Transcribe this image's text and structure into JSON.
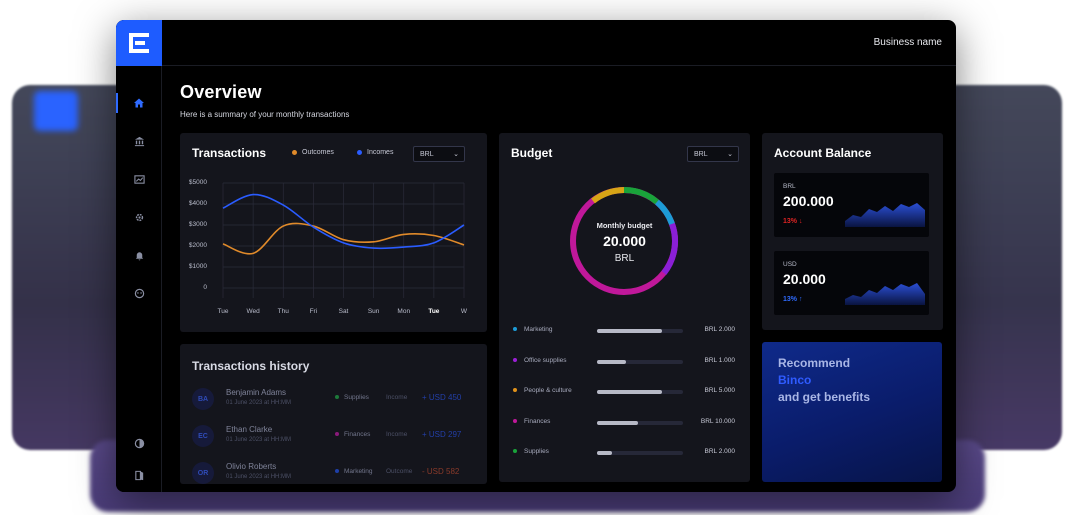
{
  "header": {
    "business_name": "Business name"
  },
  "sidebar": {
    "items": [
      {
        "icon": "home-icon"
      },
      {
        "icon": "bank-icon"
      },
      {
        "icon": "chart-icon"
      },
      {
        "icon": "settings-icon"
      },
      {
        "icon": "bell-icon"
      },
      {
        "icon": "support-icon"
      },
      {
        "icon": "theme-icon"
      },
      {
        "icon": "logout-icon"
      }
    ]
  },
  "page": {
    "title": "Overview",
    "subtitle": "Here is a summary of your monthly transactions"
  },
  "transactions": {
    "title": "Transactions",
    "legend": {
      "outcomes": "Outcomes",
      "incomes": "Incomes"
    },
    "currency": "BRL",
    "chart_data": {
      "type": "line",
      "x": [
        "Tue",
        "Wed",
        "Thu",
        "Fri",
        "Sat",
        "Sun",
        "Mon",
        "Tue",
        "W"
      ],
      "series": [
        {
          "name": "Outcomes",
          "color": "#e08a2a",
          "values": [
            2100,
            1650,
            2950,
            2950,
            2300,
            2200,
            2550,
            2500,
            2050
          ]
        },
        {
          "name": "Incomes",
          "color": "#2a5cff",
          "values": [
            3800,
            4450,
            3950,
            2900,
            2150,
            1900,
            1950,
            2150,
            3000
          ]
        }
      ],
      "yticks": [
        "$5000",
        "$4000",
        "$3000",
        "$2000",
        "$1000",
        "0"
      ],
      "ylim": [
        0,
        5000
      ],
      "grid": true
    }
  },
  "history": {
    "title": "Transactions history",
    "rows": [
      {
        "initials": "BA",
        "name": "Benjamin Adams",
        "date": "01 June 2023 at HH:MM",
        "category": "Supplies",
        "type": "Income",
        "amount": "+ USD 450"
      },
      {
        "initials": "EC",
        "name": "Ethan Clarke",
        "date": "01 June 2023 at HH:MM",
        "category": "Finances",
        "type": "Income",
        "amount": "+ USD 297"
      },
      {
        "initials": "OR",
        "name": "Olivio Roberts",
        "date": "01 June 2023 at HH:MM",
        "category": "Marketing",
        "type": "Outcome",
        "amount": "- USD 582"
      }
    ],
    "category_colors": [
      "#1d7a3a",
      "#8a1a7a",
      "#1e3fa8"
    ]
  },
  "budget": {
    "title": "Budget",
    "currency": "BRL",
    "donut": {
      "label": "Monthly budget",
      "value": "20.000",
      "currency": "BRL"
    },
    "items": [
      {
        "label": "Marketing",
        "value": "BRL 2.000",
        "fill": 0.76,
        "color": "#1d9bd6"
      },
      {
        "label": "Office supplies",
        "value": "BRL 1.000",
        "fill": 0.34,
        "color": "#9b1fd6"
      },
      {
        "label": "People & culture",
        "value": "BRL 5.000",
        "fill": 0.76,
        "color": "#e0921a"
      },
      {
        "label": "Finances",
        "value": "BRL 10.000",
        "fill": 0.48,
        "color": "#c0189a"
      },
      {
        "label": "Supplies",
        "value": "BRL 2.000",
        "fill": 0.18,
        "color": "#19a33a"
      }
    ]
  },
  "balance": {
    "title": "Account Balance",
    "accounts": [
      {
        "currency": "BRL",
        "value": "200.000",
        "change": "13%",
        "arrow": "↓",
        "color": "#e02424"
      },
      {
        "currency": "USD",
        "value": "20.000",
        "change": "13%",
        "arrow": "↑",
        "color": "#2f6bff"
      }
    ]
  },
  "recommend": {
    "line1": "Recommend",
    "line2": "Binco",
    "line3": "and get benefits"
  }
}
